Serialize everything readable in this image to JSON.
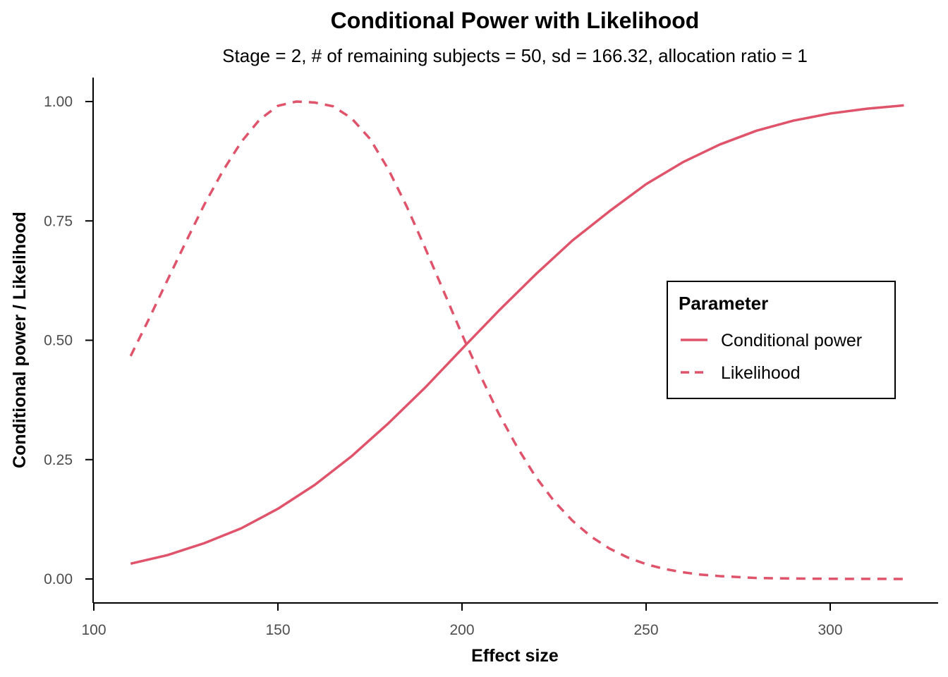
{
  "chart_data": {
    "type": "line",
    "title": "Conditional Power with Likelihood",
    "subtitle": "Stage = 2, # of remaining subjects = 50, sd = 166.32, allocation ratio = 1",
    "xlabel": "Effect size",
    "ylabel": "Conditional power / Likelihood",
    "xlim": [
      100,
      325
    ],
    "ylim": [
      -0.05,
      1.05
    ],
    "x_ticks": [
      100,
      150,
      200,
      250,
      300
    ],
    "x_tick_labels": [
      "100",
      "150",
      "200",
      "250",
      "300"
    ],
    "y_ticks": [
      0,
      0.25,
      0.5,
      0.75,
      1.0
    ],
    "y_tick_labels": [
      "0.00",
      "0.25",
      "0.50",
      "0.75",
      "1.00"
    ],
    "grid": false,
    "legend": {
      "title": "Parameter",
      "position": "right",
      "entries": [
        "Conditional power",
        "Likelihood"
      ]
    },
    "series": [
      {
        "name": "Conditional power",
        "line_style": "solid",
        "color": "#DF536B",
        "x": [
          110,
          120,
          130,
          140,
          150,
          160,
          170,
          180,
          190,
          200,
          210,
          220,
          230,
          240,
          250,
          260,
          270,
          280,
          290,
          300,
          310,
          320
        ],
        "y": [
          0.032,
          0.05,
          0.075,
          0.106,
          0.147,
          0.197,
          0.257,
          0.326,
          0.401,
          0.482,
          0.562,
          0.638,
          0.709,
          0.77,
          0.827,
          0.873,
          0.91,
          0.939,
          0.96,
          0.975,
          0.985,
          0.992
        ]
      },
      {
        "name": "Likelihood",
        "line_style": "dashed",
        "color": "#DF536B",
        "x": [
          110,
          115,
          120,
          125,
          130,
          135,
          140,
          145,
          150,
          155,
          160,
          165,
          170,
          175,
          180,
          185,
          190,
          195,
          200,
          205,
          210,
          215,
          220,
          225,
          230,
          235,
          240,
          245,
          250,
          255,
          260,
          265,
          270,
          275,
          280,
          285,
          290,
          295,
          300,
          305,
          310,
          315,
          320
        ],
        "y": [
          0.467,
          0.545,
          0.626,
          0.706,
          0.784,
          0.854,
          0.915,
          0.962,
          0.991,
          1.0,
          0.998,
          0.99,
          0.965,
          0.922,
          0.858,
          0.78,
          0.693,
          0.603,
          0.512,
          0.426,
          0.346,
          0.276,
          0.214,
          0.163,
          0.122,
          0.089,
          0.064,
          0.045,
          0.031,
          0.021,
          0.014,
          0.009,
          0.006,
          0.004,
          0.002,
          0.0015,
          0.001,
          0.0006,
          0.0004,
          0.0002,
          0.0001,
          0.0001,
          0.0
        ]
      }
    ]
  }
}
